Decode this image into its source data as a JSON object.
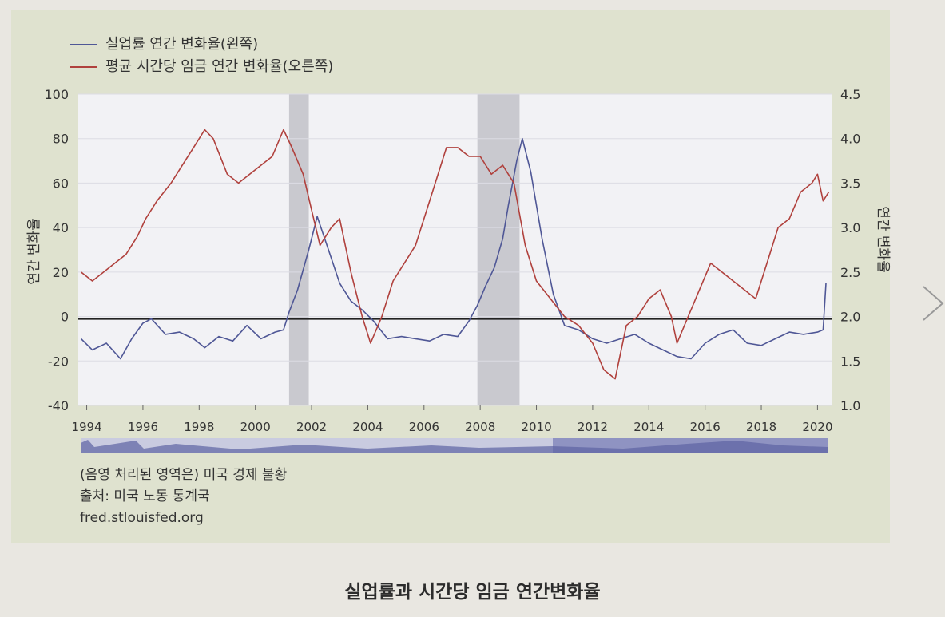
{
  "legend": {
    "unemployment": "실업률 연간 변화율(왼쪽)",
    "wages": "평균 시간당 임금 연간 변화율(오른쪽)"
  },
  "notes": {
    "shaded": "(음영 처리된 영역은) 미국 경제 불황",
    "source": "출처: 미국 노동 통계국",
    "url": "fred.stlouisfed.org"
  },
  "caption": "실업률과 시간당 임금 연간변화율",
  "colors": {
    "unemployment": "#4f5796",
    "wages": "#b0413d",
    "recession": "#c9c9cf",
    "plot_bg": "#f2f2f5",
    "zero_line": "#222222"
  },
  "chart_data": {
    "type": "line",
    "xlim": [
      1993.7,
      2020.5
    ],
    "xticks": [
      "1994",
      "1996",
      "1998",
      "2000",
      "2002",
      "2004",
      "2006",
      "2008",
      "2010",
      "2012",
      "2014",
      "2016",
      "2018",
      "2020"
    ],
    "y_left": {
      "label": "연간 변화율",
      "lim": [
        -40,
        100
      ],
      "ticks": [
        "100",
        "80",
        "60",
        "40",
        "20",
        "0",
        "-20",
        "-40"
      ]
    },
    "y_right": {
      "label": "연간 변화율",
      "lim": [
        1.0,
        4.5
      ],
      "ticks": [
        "4.5",
        "4.0",
        "3.5",
        "3.0",
        "2.5",
        "2.0",
        "1.5",
        "1.0"
      ]
    },
    "recessions": [
      [
        2001.2,
        2001.9
      ],
      [
        2007.9,
        2009.4
      ]
    ],
    "zero_line": 0,
    "series": [
      {
        "name": "실업률 연간 변화율(왼쪽)",
        "axis": "left",
        "x": [
          1993.8,
          1994.2,
          1994.7,
          1995.2,
          1995.6,
          1996.0,
          1996.3,
          1996.8,
          1997.3,
          1997.8,
          1998.2,
          1998.7,
          1999.2,
          1999.7,
          2000.2,
          2000.7,
          2001.0,
          2001.2,
          2001.5,
          2001.9,
          2002.2,
          2002.6,
          2003.0,
          2003.4,
          2003.8,
          2004.2,
          2004.7,
          2005.2,
          2005.7,
          2006.2,
          2006.7,
          2007.2,
          2007.6,
          2007.9,
          2008.2,
          2008.5,
          2008.8,
          2009.0,
          2009.3,
          2009.5,
          2009.8,
          2010.2,
          2010.6,
          2011.0,
          2011.5,
          2012.0,
          2012.5,
          2013.0,
          2013.5,
          2014.0,
          2014.5,
          2015.0,
          2015.5,
          2016.0,
          2016.5,
          2017.0,
          2017.5,
          2018.0,
          2018.5,
          2019.0,
          2019.5,
          2020.0,
          2020.2,
          2020.3
        ],
        "y": [
          -10,
          -15,
          -12,
          -19,
          -10,
          -3,
          -1,
          -8,
          -7,
          -10,
          -14,
          -9,
          -11,
          -4,
          -10,
          -7,
          -6,
          2,
          12,
          30,
          45,
          30,
          15,
          7,
          3,
          -2,
          -10,
          -9,
          -10,
          -11,
          -8,
          -9,
          -2,
          5,
          14,
          22,
          35,
          50,
          70,
          80,
          65,
          35,
          10,
          -4,
          -6,
          -10,
          -12,
          -10,
          -8,
          -12,
          -15,
          -18,
          -19,
          -12,
          -8,
          -6,
          -12,
          -13,
          -10,
          -7,
          -8,
          -7,
          -6,
          15
        ]
      },
      {
        "name": "평균 시간당 임금 연간 변화율(오른쪽)",
        "axis": "right",
        "x": [
          1993.8,
          1994.2,
          1994.6,
          1995.0,
          1995.4,
          1995.8,
          1996.1,
          1996.5,
          1997.0,
          1997.4,
          1997.8,
          1998.2,
          1998.5,
          1999.0,
          1999.4,
          1999.8,
          2000.2,
          2000.6,
          2001.0,
          2001.3,
          2001.7,
          2002.0,
          2002.3,
          2002.7,
          2003.0,
          2003.4,
          2003.8,
          2004.1,
          2004.5,
          2004.9,
          2005.3,
          2005.7,
          2006.1,
          2006.5,
          2006.8,
          2007.2,
          2007.6,
          2008.0,
          2008.4,
          2008.8,
          2009.2,
          2009.6,
          2010.0,
          2010.5,
          2011.0,
          2011.5,
          2012.0,
          2012.4,
          2012.8,
          2013.2,
          2013.6,
          2014.0,
          2014.4,
          2014.8,
          2015.0,
          2015.4,
          2015.8,
          2016.2,
          2016.6,
          2017.0,
          2017.4,
          2017.8,
          2018.2,
          2018.6,
          2019.0,
          2019.4,
          2019.8,
          2020.0,
          2020.2,
          2020.4
        ],
        "y": [
          2.5,
          2.4,
          2.5,
          2.6,
          2.7,
          2.9,
          3.1,
          3.3,
          3.5,
          3.7,
          3.9,
          4.1,
          4.0,
          3.6,
          3.5,
          3.6,
          3.7,
          3.8,
          4.1,
          3.9,
          3.6,
          3.2,
          2.8,
          3.0,
          3.1,
          2.5,
          2.0,
          1.7,
          2.0,
          2.4,
          2.6,
          2.8,
          3.2,
          3.6,
          3.9,
          3.9,
          3.8,
          3.8,
          3.6,
          3.7,
          3.5,
          2.8,
          2.4,
          2.2,
          2.0,
          1.9,
          1.7,
          1.4,
          1.3,
          1.9,
          2.0,
          2.2,
          2.3,
          2.0,
          1.7,
          2.0,
          2.3,
          2.6,
          2.5,
          2.4,
          2.3,
          2.2,
          2.6,
          3.0,
          3.1,
          3.4,
          3.5,
          3.6,
          3.3,
          3.4
        ]
      }
    ]
  }
}
